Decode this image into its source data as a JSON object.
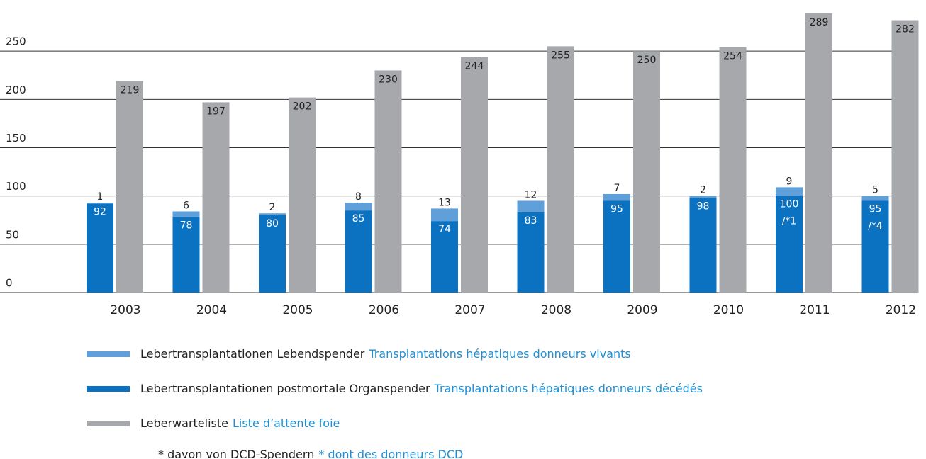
{
  "chart_data": {
    "type": "bar",
    "categories": [
      "2003",
      "2004",
      "2005",
      "2006",
      "2007",
      "2008",
      "2009",
      "2010",
      "2011",
      "2012"
    ],
    "series": [
      {
        "name": "Lebertransplantationen Lebendspender",
        "name_fr": "Transplantations hépatiques donneurs vivants",
        "color": "#5fa0da",
        "stack": "liver",
        "label_position": "above",
        "values": [
          1,
          6,
          2,
          8,
          13,
          12,
          7,
          2,
          9,
          5
        ]
      },
      {
        "name": "Lebertransplantationen postmortale Organspender",
        "name_fr": "Transplantations hépatiques donneurs décédés",
        "color": "#0b72c2",
        "stack": "liver",
        "label_position": "inside",
        "values": [
          92,
          78,
          80,
          85,
          74,
          83,
          95,
          98,
          100,
          95
        ],
        "value_annotations": [
          null,
          null,
          null,
          null,
          null,
          null,
          null,
          null,
          "/*1",
          "/*4"
        ]
      },
      {
        "name": "Leberwarteliste",
        "name_fr": "Liste d’attente foie",
        "color": "#a6a8ab",
        "label_position": "inside",
        "values": [
          219,
          197,
          202,
          230,
          244,
          255,
          250,
          254,
          289,
          282
        ]
      }
    ],
    "footnote": "* davon von DCD-Spendern",
    "footnote_fr": "* dont des donneurs DCD",
    "ylim": [
      0,
      300
    ],
    "yticks": [
      0,
      50,
      100,
      150,
      200,
      250
    ],
    "grid": true
  }
}
